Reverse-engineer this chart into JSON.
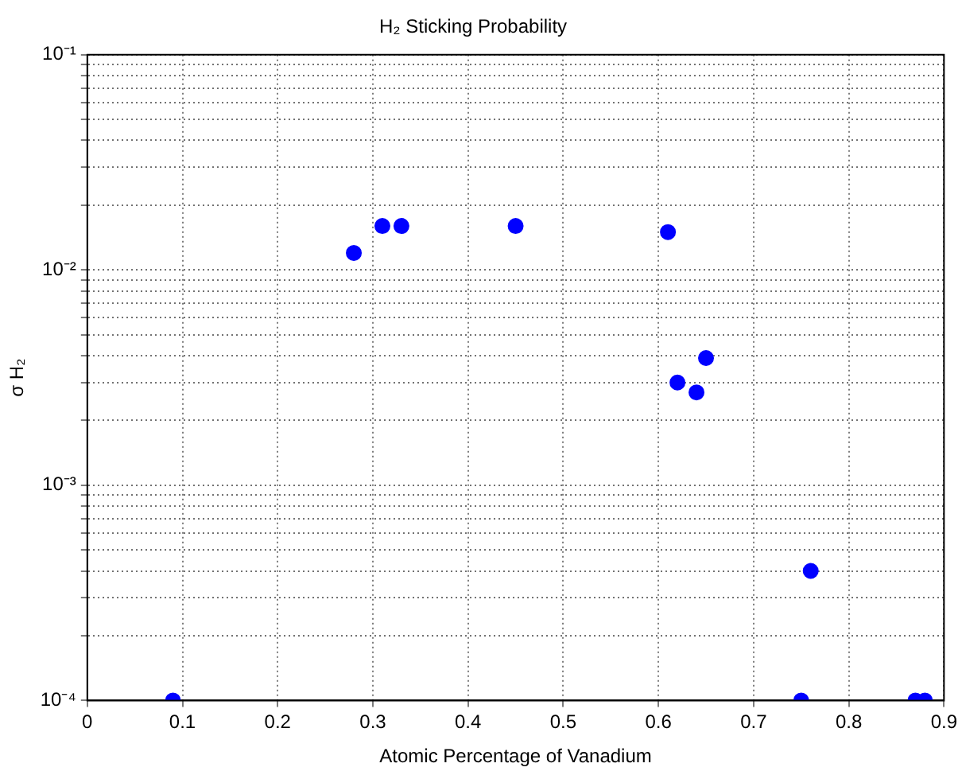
{
  "chart_data": {
    "type": "scatter",
    "title": "H₂ Sticking Probability",
    "xlabel": "Atomic Percentage of Vanadium",
    "ylabel": "σ H₂",
    "x": [
      0.09,
      0.28,
      0.31,
      0.33,
      0.45,
      0.61,
      0.62,
      0.64,
      0.65,
      0.75,
      0.76,
      0.87,
      0.88
    ],
    "series": [
      {
        "color": "#0000ff",
        "values": [
          0.0001,
          0.012,
          0.016,
          0.016,
          0.016,
          0.015,
          0.003,
          0.0027,
          0.0039,
          0.0001,
          0.0004,
          0.0001,
          0.0001
        ]
      }
    ],
    "xlim": [
      0,
      0.9
    ],
    "xticks": [
      0,
      0.1,
      0.2,
      0.3,
      0.4,
      0.5,
      0.6,
      0.7,
      0.8,
      0.9
    ],
    "ylim": [
      0.0001,
      0.1
    ],
    "log": "y",
    "yticks": [
      {
        "value": 0.0001,
        "label": "10⁻⁴"
      },
      {
        "value": 0.0002,
        "label": null
      },
      {
        "value": 0.0003,
        "label": null
      },
      {
        "value": 0.0004,
        "label": null
      },
      {
        "value": 0.0005,
        "label": null
      },
      {
        "value": 0.0006,
        "label": null
      },
      {
        "value": 0.0007,
        "label": null
      },
      {
        "value": 0.0008,
        "label": null
      },
      {
        "value": 0.0009,
        "label": null
      },
      {
        "value": 0.001,
        "label": "10⁻³"
      },
      {
        "value": 0.002,
        "label": null
      },
      {
        "value": 0.003,
        "label": null
      },
      {
        "value": 0.004,
        "label": null
      },
      {
        "value": 0.005,
        "label": null
      },
      {
        "value": 0.006,
        "label": null
      },
      {
        "value": 0.007,
        "label": null
      },
      {
        "value": 0.008,
        "label": null
      },
      {
        "value": 0.009,
        "label": null
      },
      {
        "value": 0.01,
        "label": "10⁻²"
      },
      {
        "value": 0.02,
        "label": null
      },
      {
        "value": 0.03,
        "label": null
      },
      {
        "value": 0.04,
        "label": null
      },
      {
        "value": 0.05,
        "label": null
      },
      {
        "value": 0.06,
        "label": null
      },
      {
        "value": 0.07,
        "label": null
      },
      {
        "value": 0.08,
        "label": null
      },
      {
        "value": 0.09,
        "label": null
      },
      {
        "value": 0.1,
        "label": "10⁻¹"
      }
    ],
    "grid": true,
    "marker": "circle",
    "legend": false
  }
}
